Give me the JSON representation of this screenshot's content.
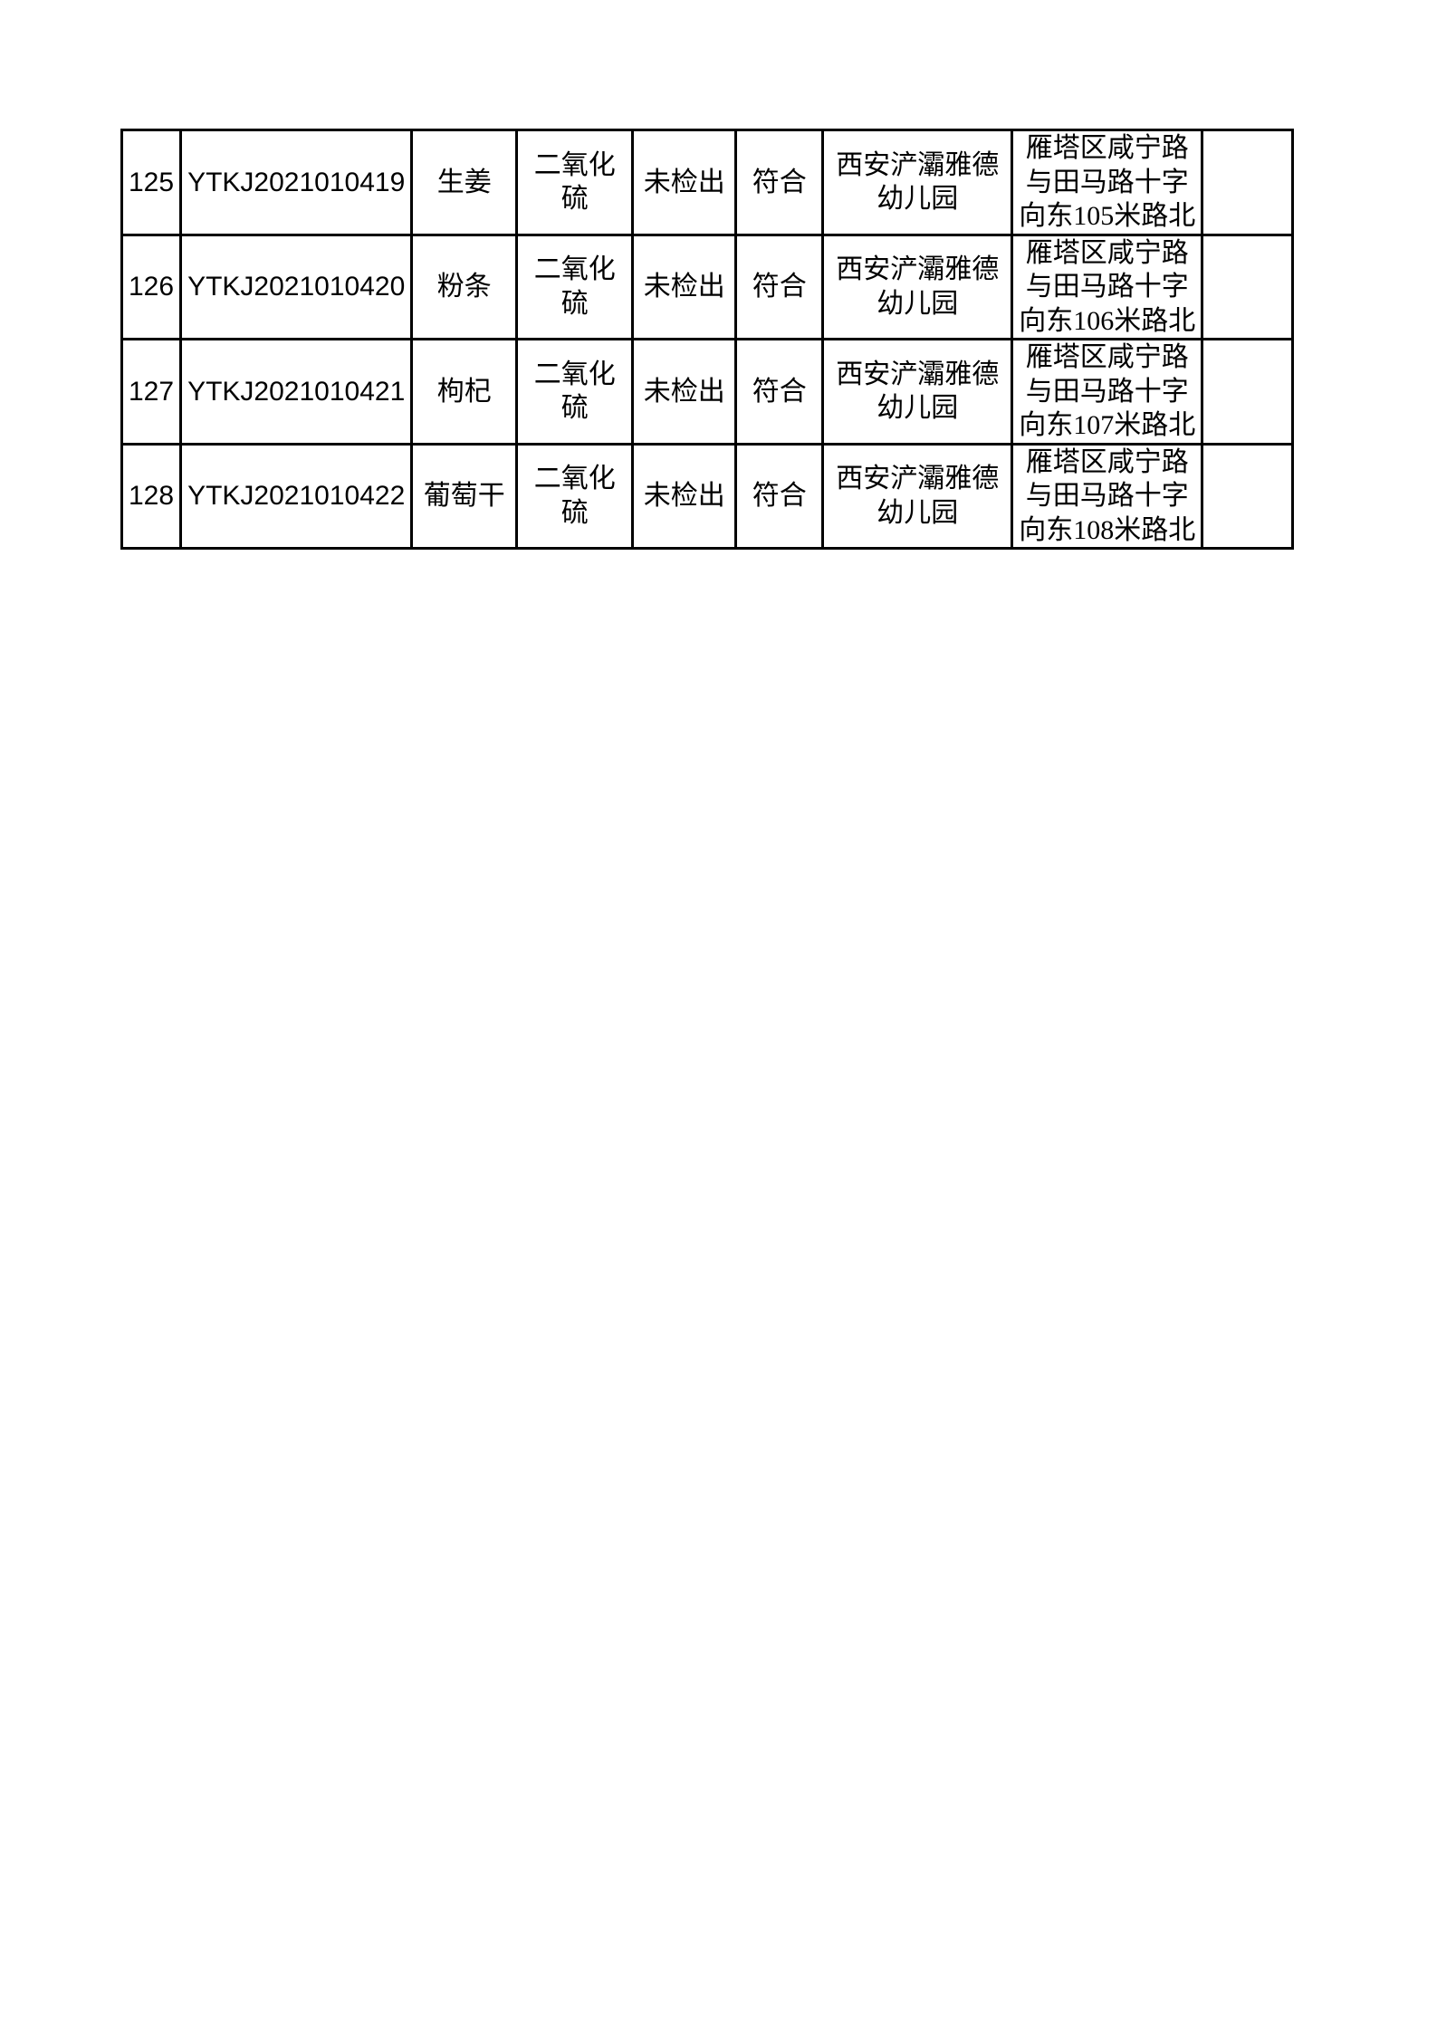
{
  "document": {
    "background_color": "#ffffff",
    "text_color": "#000000",
    "border_color": "#000000"
  },
  "table": {
    "rows": [
      {
        "no": "125",
        "report_no": "YTKJ2021010419",
        "sample_name": "生姜",
        "test_item": "二氧化\n硫",
        "result": "未检出",
        "conclusion": "符合",
        "sampled_unit": "西安浐灞雅德\n幼儿园",
        "address": "雁塔区咸宁路\n与田马路十字\n向东105米路北",
        "remark": ""
      },
      {
        "no": "126",
        "report_no": "YTKJ2021010420",
        "sample_name": "粉条",
        "test_item": "二氧化\n硫",
        "result": "未检出",
        "conclusion": "符合",
        "sampled_unit": "西安浐灞雅德\n幼儿园",
        "address": "雁塔区咸宁路\n与田马路十字\n向东106米路北",
        "remark": ""
      },
      {
        "no": "127",
        "report_no": "YTKJ2021010421",
        "sample_name": "枸杞",
        "test_item": "二氧化\n硫",
        "result": "未检出",
        "conclusion": "符合",
        "sampled_unit": "西安浐灞雅德\n幼儿园",
        "address": "雁塔区咸宁路\n与田马路十字\n向东107米路北",
        "remark": ""
      },
      {
        "no": "128",
        "report_no": "YTKJ2021010422",
        "sample_name": "葡萄干",
        "test_item": "二氧化\n硫",
        "result": "未检出",
        "conclusion": "符合",
        "sampled_unit": "西安浐灞雅德\n幼儿园",
        "address": "雁塔区咸宁路\n与田马路十字\n向东108米路北",
        "remark": ""
      }
    ]
  }
}
